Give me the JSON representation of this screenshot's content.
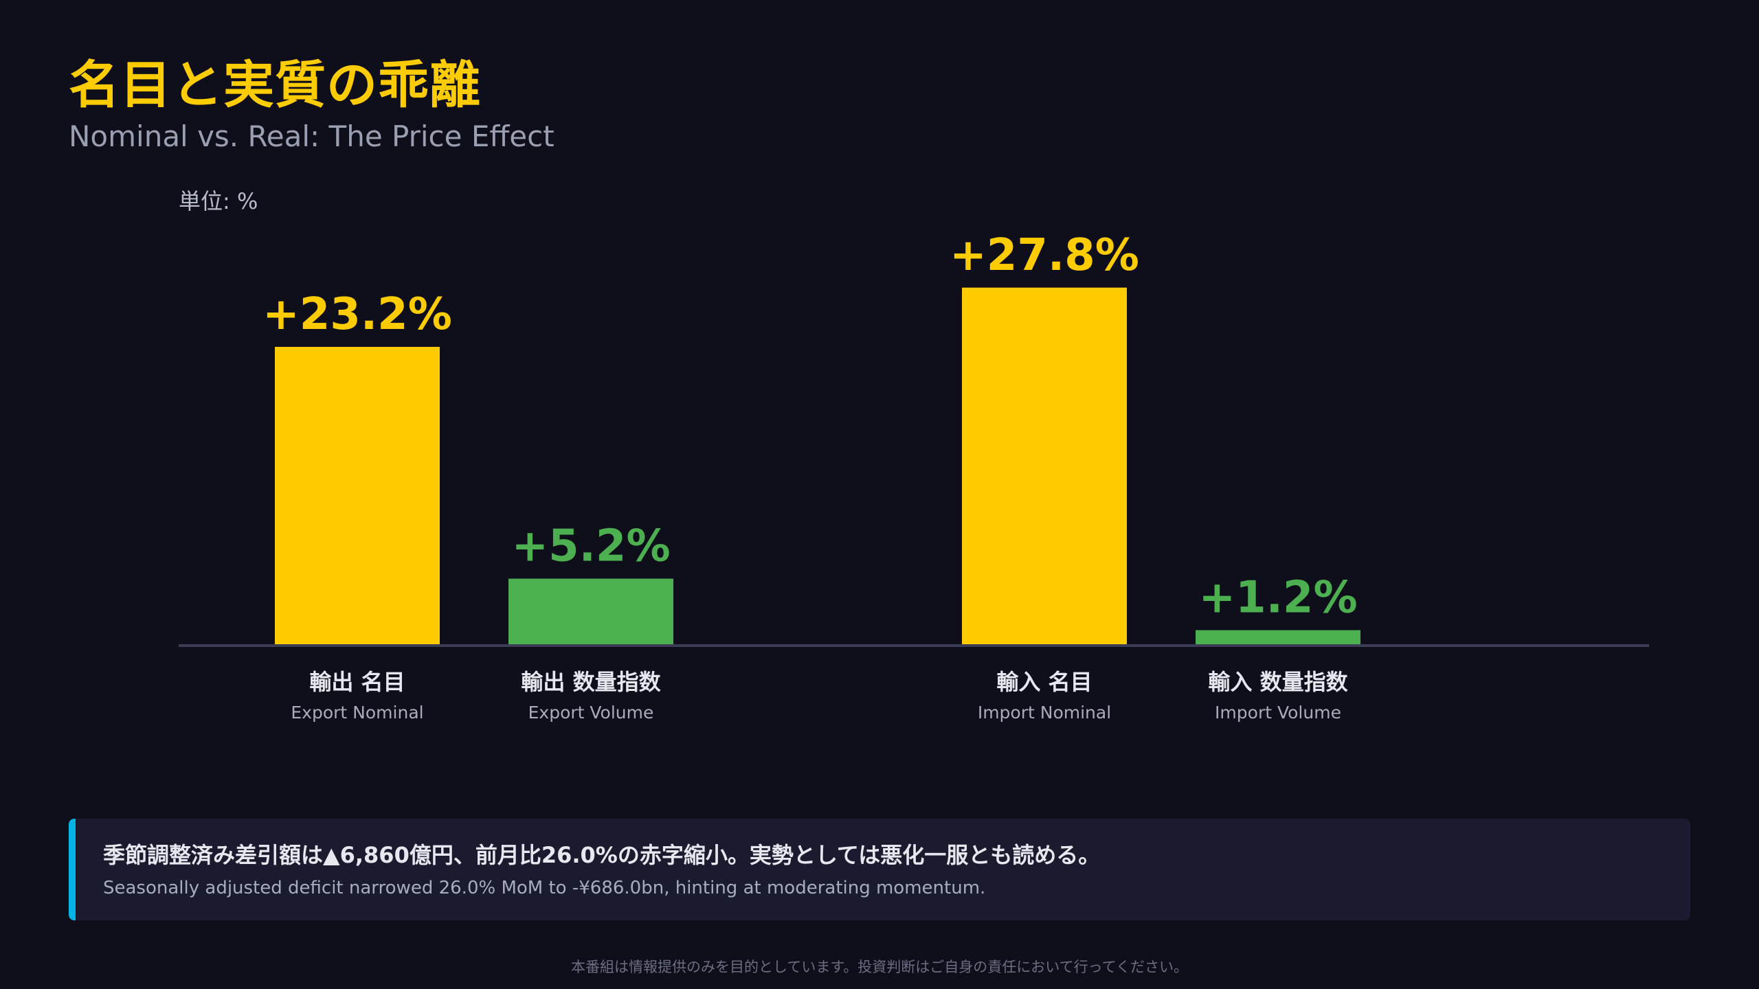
{
  "header": {
    "title": "名目と実質の乖離",
    "subtitle": "Nominal vs. Real: The Price Effect"
  },
  "chart_data": {
    "type": "bar",
    "unit_label": "単位: %",
    "categories": [
      {
        "jp": "輸出 名目",
        "en": "Export Nominal",
        "value": 23.2,
        "label": "+23.2%",
        "color": "#ffcc00"
      },
      {
        "jp": "輸出 数量指数",
        "en": "Export Volume",
        "value": 5.2,
        "label": "+5.2%",
        "color": "#4caf50"
      },
      {
        "jp": "輸入 名目",
        "en": "Import Nominal",
        "value": 27.8,
        "label": "+27.8%",
        "color": "#ffcc00"
      },
      {
        "jp": "輸入 数量指数",
        "en": "Import Volume",
        "value": 1.2,
        "label": "+1.2%",
        "color": "#4caf50"
      }
    ],
    "grid": false,
    "legend": "none"
  },
  "summary": {
    "jp": "季節調整済み差引額は▲6,860億円、前月比26.0%の赤字縮小。実勢としては悪化一服とも読める。",
    "en": "Seasonally adjusted deficit narrowed 26.0% MoM to -¥686.0bn, hinting at moderating momentum.",
    "accent_color": "#00b4e6"
  },
  "footer": {
    "disclaimer": "本番組は情報提供のみを目的としています。投資判断はご自身の責任において行ってください。"
  }
}
